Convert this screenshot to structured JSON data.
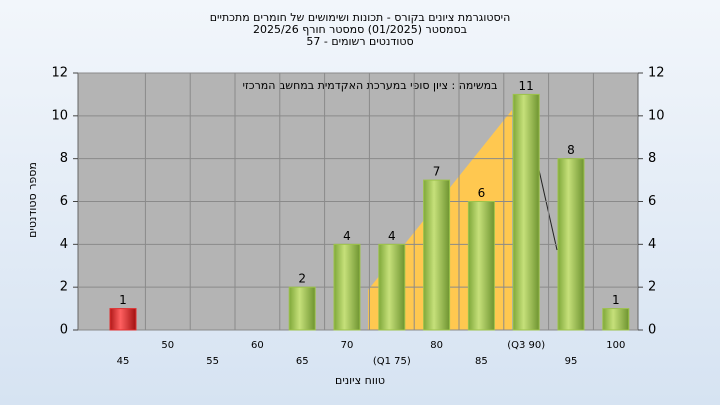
{
  "chart_data": {
    "type": "bar",
    "title": [
      "היסטוגרמת ציונים בקורס - תכונות ושימושים של חומרים מתכתיים",
      "בסמסטר (01/2025) סמסטר חורף 2025/26",
      "סטודנטים רשומים - 57"
    ],
    "annotation": "במשימה : ציון סופי במערכת האקדמית במחשב המרכזי",
    "x_label": "טווח ציונים",
    "y_label": "מספר סטודנטים",
    "categories": [
      "45",
      "50",
      "55",
      "60",
      "65",
      "70",
      "(Q1 75)",
      "80",
      "85",
      "(Q3 90)",
      "95",
      "100"
    ],
    "values": [
      1,
      0,
      0,
      0,
      2,
      4,
      4,
      7,
      6,
      11,
      8,
      1
    ],
    "colors": [
      "#e03030",
      "#9cc24a",
      "#9cc24a",
      "#9cc24a",
      "#9cc24a",
      "#9cc24a",
      "#9cc24a",
      "#9cc24a",
      "#9cc24a",
      "#9cc24a",
      "#9cc24a",
      "#9cc24a"
    ],
    "ylim": [
      0,
      12
    ],
    "yticks": [
      0,
      2,
      4,
      6,
      8,
      10,
      12
    ],
    "y2lim": [
      0,
      12
    ],
    "y2ticks": [
      0,
      2,
      4,
      6,
      8,
      10,
      12
    ],
    "grid": true
  }
}
